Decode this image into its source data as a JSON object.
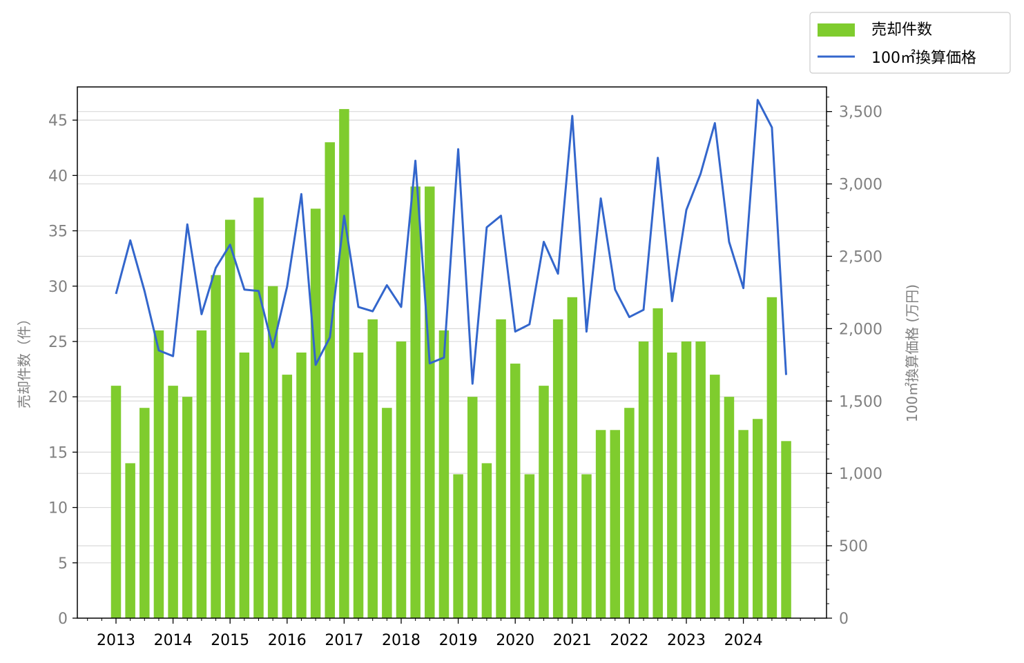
{
  "chart_data": {
    "type": "bar+line",
    "legend": {
      "position": "top-right",
      "entries": [
        "売却件数",
        "100㎡換算価格"
      ]
    },
    "colors": {
      "bars": "#7fcc2e",
      "line": "#3366cc",
      "grid": "#d9d9d9",
      "tick_text": "#808080"
    },
    "grid": true,
    "x_tick_labels": [
      "2013",
      "2014",
      "2015",
      "2016",
      "2017",
      "2018",
      "2019",
      "2020",
      "2021",
      "2022",
      "2023",
      "2024"
    ],
    "y_left": {
      "label": "売却件数（件）",
      "lim": [
        0,
        48
      ],
      "ticks": [
        0,
        5,
        10,
        15,
        20,
        25,
        30,
        35,
        40,
        45
      ],
      "tick_labels": [
        "0",
        "5",
        "10",
        "15",
        "20",
        "25",
        "30",
        "35",
        "40",
        "45"
      ]
    },
    "y_right": {
      "label": "100㎡換算価格 (万円)",
      "lim": [
        0,
        3670
      ],
      "ticks": [
        0,
        500,
        1000,
        1500,
        2000,
        2500,
        3000,
        3500
      ],
      "tick_labels": [
        "0",
        "500",
        "1,000",
        "1,500",
        "2,000",
        "2,500",
        "3,000",
        "3,500"
      ]
    },
    "series": [
      {
        "name": "売却件数",
        "kind": "bar",
        "axis": "left",
        "values": [
          21,
          14,
          19,
          26,
          21,
          20,
          26,
          31,
          36,
          24,
          38,
          30,
          22,
          24,
          37,
          43,
          46,
          24,
          27,
          19,
          25,
          39,
          39,
          26,
          13,
          20,
          14,
          27,
          23,
          13,
          21,
          27,
          29,
          13,
          17,
          17,
          19,
          25,
          28,
          24,
          25,
          25,
          22,
          20,
          17,
          18,
          29,
          16
        ]
      },
      {
        "name": "100㎡換算価格",
        "kind": "line",
        "axis": "right",
        "values": [
          2240,
          2610,
          2260,
          1850,
          1810,
          2720,
          2100,
          2420,
          2580,
          2270,
          2260,
          1870,
          2290,
          2930,
          1750,
          1940,
          2780,
          2150,
          2120,
          2300,
          2150,
          3160,
          1760,
          1800,
          3240,
          1620,
          2700,
          2780,
          1980,
          2030,
          2600,
          2380,
          3470,
          1980,
          2900,
          2270,
          2080,
          2130,
          3180,
          2190,
          2820,
          3070,
          3420,
          2600,
          2280,
          3580,
          3390,
          1680
        ]
      }
    ]
  }
}
